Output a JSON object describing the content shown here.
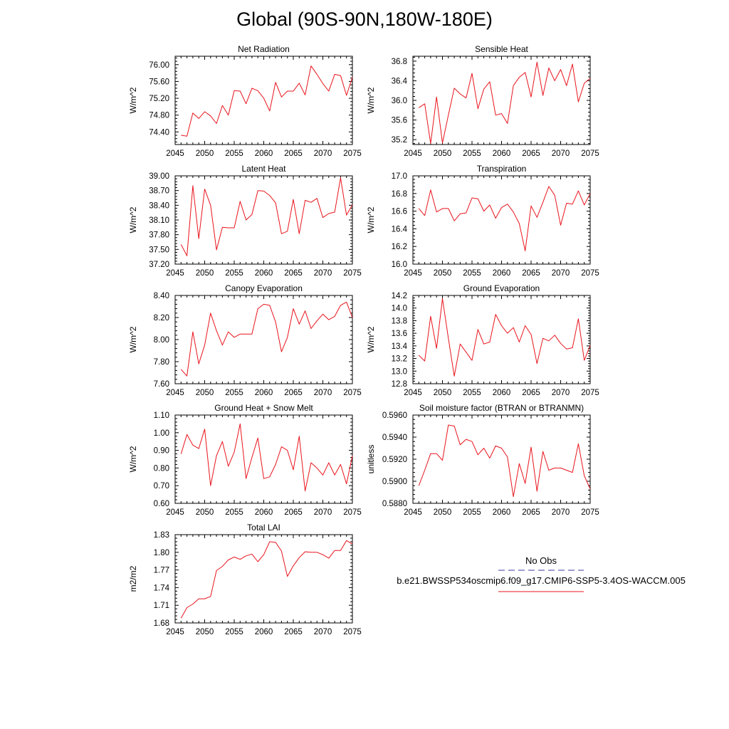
{
  "figure_title": "Global (90S-90N,180W-180E)",
  "colors": {
    "series": "#e8141c",
    "obs": "#3a3aa0",
    "axis": "#000000"
  },
  "legend": {
    "items": [
      {
        "label": "No Obs",
        "style": "dashed",
        "color": "#3a3aa0"
      },
      {
        "label": "b.e21.BWSSP534oscmip6.f09_g17.CMIP6-SSP5-3.4OS-WACCM.005",
        "style": "solid",
        "color": "#e8141c"
      }
    ]
  },
  "chart_data": [
    {
      "type": "line",
      "title": "Net Radiation",
      "ylabel": "W/m^2",
      "xlabel": "",
      "xlim": [
        2045,
        2075
      ],
      "ylim": [
        74.1,
        76.2
      ],
      "xticks": [
        "2045",
        "2050",
        "2055",
        "2060",
        "2065",
        "2070",
        "2075"
      ],
      "yticks": [
        "74.40",
        "74.80",
        "75.20",
        "75.60",
        "76.00"
      ],
      "x": [
        2046,
        2047,
        2048,
        2049,
        2050,
        2051,
        2052,
        2053,
        2054,
        2055,
        2056,
        2057,
        2058,
        2059,
        2060,
        2061,
        2062,
        2063,
        2064,
        2065,
        2066,
        2067,
        2068,
        2069,
        2070,
        2071,
        2072,
        2073,
        2074,
        2075
      ],
      "values": [
        74.32,
        74.3,
        74.85,
        74.72,
        74.88,
        74.78,
        74.6,
        75.03,
        74.8,
        75.38,
        75.37,
        75.07,
        75.44,
        75.38,
        75.2,
        74.9,
        75.58,
        75.23,
        75.37,
        75.37,
        75.56,
        75.28,
        75.97,
        75.77,
        75.55,
        75.37,
        75.77,
        75.74,
        75.27,
        75.7
      ]
    },
    {
      "type": "line",
      "title": "Sensible Heat",
      "ylabel": "W/m^2",
      "xlabel": "",
      "xlim": [
        2045,
        2075
      ],
      "ylim": [
        35.1,
        36.9
      ],
      "xticks": [
        "2045",
        "2050",
        "2055",
        "2060",
        "2065",
        "2070",
        "2075"
      ],
      "yticks": [
        "35.2",
        "35.6",
        "36.0",
        "36.4",
        "36.8"
      ],
      "x": [
        2046,
        2047,
        2048,
        2049,
        2050,
        2051,
        2052,
        2053,
        2054,
        2055,
        2056,
        2057,
        2058,
        2059,
        2060,
        2061,
        2062,
        2063,
        2064,
        2065,
        2066,
        2067,
        2068,
        2069,
        2070,
        2071,
        2072,
        2073,
        2074,
        2075
      ],
      "values": [
        35.85,
        35.93,
        35.12,
        36.07,
        35.13,
        35.7,
        36.25,
        36.13,
        36.05,
        36.55,
        35.83,
        36.23,
        36.38,
        35.7,
        35.73,
        35.53,
        36.3,
        36.47,
        36.57,
        36.07,
        36.78,
        36.1,
        36.66,
        36.4,
        36.63,
        36.3,
        36.74,
        35.97,
        36.35,
        36.45
      ]
    },
    {
      "type": "line",
      "title": "Latent Heat",
      "ylabel": "W/m^2",
      "xlabel": "",
      "xlim": [
        2045,
        2075
      ],
      "ylim": [
        37.2,
        39.0
      ],
      "xticks": [
        "2045",
        "2050",
        "2055",
        "2060",
        "2065",
        "2070",
        "2075"
      ],
      "yticks": [
        "37.20",
        "37.50",
        "37.80",
        "38.10",
        "38.40",
        "38.70",
        "39.00"
      ],
      "x": [
        2046,
        2047,
        2048,
        2049,
        2050,
        2051,
        2052,
        2053,
        2054,
        2055,
        2056,
        2057,
        2058,
        2059,
        2060,
        2061,
        2062,
        2063,
        2064,
        2065,
        2066,
        2067,
        2068,
        2069,
        2070,
        2071,
        2072,
        2073,
        2074,
        2075
      ],
      "values": [
        37.6,
        37.37,
        38.8,
        37.72,
        38.73,
        38.4,
        37.49,
        37.95,
        37.94,
        37.94,
        38.48,
        38.1,
        38.21,
        38.7,
        38.69,
        38.6,
        38.45,
        37.82,
        37.87,
        38.52,
        37.82,
        38.5,
        38.46,
        38.54,
        38.15,
        38.23,
        38.26,
        38.96,
        38.2,
        38.41
      ]
    },
    {
      "type": "line",
      "title": "Transpiration",
      "ylabel": "W/m^2",
      "xlabel": "",
      "xlim": [
        2045,
        2075
      ],
      "ylim": [
        16.0,
        17.0
      ],
      "xticks": [
        "2045",
        "2050",
        "2055",
        "2060",
        "2065",
        "2070",
        "2075"
      ],
      "yticks": [
        "16.0",
        "16.2",
        "16.4",
        "16.6",
        "16.8",
        "17.0"
      ],
      "x": [
        2046,
        2047,
        2048,
        2049,
        2050,
        2051,
        2052,
        2053,
        2054,
        2055,
        2056,
        2057,
        2058,
        2059,
        2060,
        2061,
        2062,
        2063,
        2064,
        2065,
        2066,
        2067,
        2068,
        2069,
        2070,
        2071,
        2072,
        2073,
        2074,
        2075
      ],
      "values": [
        16.63,
        16.55,
        16.84,
        16.59,
        16.63,
        16.63,
        16.49,
        16.57,
        16.58,
        16.75,
        16.74,
        16.6,
        16.67,
        16.52,
        16.64,
        16.68,
        16.59,
        16.46,
        16.15,
        16.66,
        16.53,
        16.7,
        16.88,
        16.78,
        16.44,
        16.69,
        16.68,
        16.83,
        16.67,
        16.8
      ]
    },
    {
      "type": "line",
      "title": "Canopy Evaporation",
      "ylabel": "W/m^2",
      "xlabel": "",
      "xlim": [
        2045,
        2075
      ],
      "ylim": [
        7.6,
        8.4
      ],
      "xticks": [
        "2045",
        "2050",
        "2055",
        "2060",
        "2065",
        "2070",
        "2075"
      ],
      "yticks": [
        "7.60",
        "7.80",
        "8.00",
        "8.20",
        "8.40"
      ],
      "x": [
        2046,
        2047,
        2048,
        2049,
        2050,
        2051,
        2052,
        2053,
        2054,
        2055,
        2056,
        2057,
        2058,
        2059,
        2060,
        2061,
        2062,
        2063,
        2064,
        2065,
        2066,
        2067,
        2068,
        2069,
        2070,
        2071,
        2072,
        2073,
        2074,
        2075
      ],
      "values": [
        7.73,
        7.67,
        8.07,
        7.78,
        7.95,
        8.24,
        8.08,
        7.95,
        8.07,
        8.02,
        8.05,
        8.05,
        8.05,
        8.28,
        8.32,
        8.31,
        8.16,
        7.89,
        8.02,
        8.28,
        8.14,
        8.26,
        8.1,
        8.17,
        8.23,
        8.18,
        8.21,
        8.31,
        8.34,
        8.2
      ]
    },
    {
      "type": "line",
      "title": "Ground Evaporation",
      "ylabel": "W/m^2",
      "xlabel": "",
      "xlim": [
        2045,
        2075
      ],
      "ylim": [
        12.8,
        14.2
      ],
      "xticks": [
        "2045",
        "2050",
        "2055",
        "2060",
        "2065",
        "2070",
        "2075"
      ],
      "yticks": [
        "12.8",
        "13.0",
        "13.2",
        "13.4",
        "13.6",
        "13.8",
        "14.0",
        "14.2"
      ],
      "x": [
        2046,
        2047,
        2048,
        2049,
        2050,
        2051,
        2052,
        2053,
        2054,
        2055,
        2056,
        2057,
        2058,
        2059,
        2060,
        2061,
        2062,
        2063,
        2064,
        2065,
        2066,
        2067,
        2068,
        2069,
        2070,
        2071,
        2072,
        2073,
        2074,
        2075
      ],
      "values": [
        13.25,
        13.16,
        13.87,
        13.36,
        14.15,
        13.52,
        12.92,
        13.43,
        13.3,
        13.17,
        13.66,
        13.43,
        13.46,
        13.9,
        13.72,
        13.6,
        13.69,
        13.46,
        13.72,
        13.58,
        13.12,
        13.52,
        13.48,
        13.57,
        13.44,
        13.35,
        13.37,
        13.83,
        13.17,
        13.41
      ]
    },
    {
      "type": "line",
      "title": "Ground Heat + Snow Melt",
      "ylabel": "W/m^2",
      "xlabel": "",
      "xlim": [
        2045,
        2075
      ],
      "ylim": [
        0.6,
        1.1
      ],
      "xticks": [
        "2045",
        "2050",
        "2055",
        "2060",
        "2065",
        "2070",
        "2075"
      ],
      "yticks": [
        "0.60",
        "0.70",
        "0.80",
        "0.90",
        "1.00",
        "1.10"
      ],
      "x": [
        2046,
        2047,
        2048,
        2049,
        2050,
        2051,
        2052,
        2053,
        2054,
        2055,
        2056,
        2057,
        2058,
        2059,
        2060,
        2061,
        2062,
        2063,
        2064,
        2065,
        2066,
        2067,
        2068,
        2069,
        2070,
        2071,
        2072,
        2073,
        2074,
        2075
      ],
      "values": [
        0.88,
        0.99,
        0.93,
        0.91,
        1.02,
        0.7,
        0.87,
        0.95,
        0.81,
        0.89,
        1.05,
        0.74,
        0.86,
        0.97,
        0.74,
        0.75,
        0.82,
        0.92,
        0.9,
        0.79,
        0.98,
        0.67,
        0.83,
        0.8,
        0.76,
        0.83,
        0.76,
        0.82,
        0.71,
        0.87
      ]
    },
    {
      "type": "line",
      "title": "Soil moisture factor (BTRAN or BTRANMN)",
      "ylabel": "unitless",
      "xlabel": "",
      "xlim": [
        2045,
        2075
      ],
      "ylim": [
        0.588,
        0.596
      ],
      "xticks": [
        "2045",
        "2050",
        "2055",
        "2060",
        "2065",
        "2070",
        "2075"
      ],
      "yticks": [
        "0.5880",
        "0.5900",
        "0.5920",
        "0.5940",
        "0.5960"
      ],
      "x": [
        2046,
        2047,
        2048,
        2049,
        2050,
        2051,
        2052,
        2053,
        2054,
        2055,
        2056,
        2057,
        2058,
        2059,
        2060,
        2061,
        2062,
        2063,
        2064,
        2065,
        2066,
        2067,
        2068,
        2069,
        2070,
        2071,
        2072,
        2073,
        2074,
        2075
      ],
      "values": [
        0.5896,
        0.591,
        0.5925,
        0.5925,
        0.5919,
        0.5951,
        0.595,
        0.5933,
        0.5938,
        0.5936,
        0.5924,
        0.593,
        0.5921,
        0.5932,
        0.593,
        0.5922,
        0.5886,
        0.5916,
        0.5898,
        0.5931,
        0.5891,
        0.5927,
        0.591,
        0.5912,
        0.5912,
        0.591,
        0.5908,
        0.5934,
        0.5905,
        0.5893
      ]
    },
    {
      "type": "line",
      "title": "Total LAI",
      "ylabel": "m2/m2",
      "xlabel": "",
      "xlim": [
        2045,
        2075
      ],
      "ylim": [
        1.68,
        1.83
      ],
      "xticks": [
        "2045",
        "2050",
        "2055",
        "2060",
        "2065",
        "2070",
        "2075"
      ],
      "yticks": [
        "1.68",
        "1.71",
        "1.74",
        "1.77",
        "1.80",
        "1.83"
      ],
      "x": [
        2046,
        2047,
        2048,
        2049,
        2050,
        2051,
        2052,
        2053,
        2054,
        2055,
        2056,
        2057,
        2058,
        2059,
        2060,
        2061,
        2062,
        2063,
        2064,
        2065,
        2066,
        2067,
        2068,
        2069,
        2070,
        2071,
        2072,
        2073,
        2074,
        2075
      ],
      "values": [
        1.688,
        1.706,
        1.712,
        1.721,
        1.721,
        1.725,
        1.769,
        1.776,
        1.787,
        1.792,
        1.788,
        1.794,
        1.797,
        1.784,
        1.796,
        1.818,
        1.817,
        1.802,
        1.759,
        1.777,
        1.791,
        1.801,
        1.8,
        1.8,
        1.796,
        1.79,
        1.803,
        1.803,
        1.82,
        1.814
      ]
    }
  ]
}
